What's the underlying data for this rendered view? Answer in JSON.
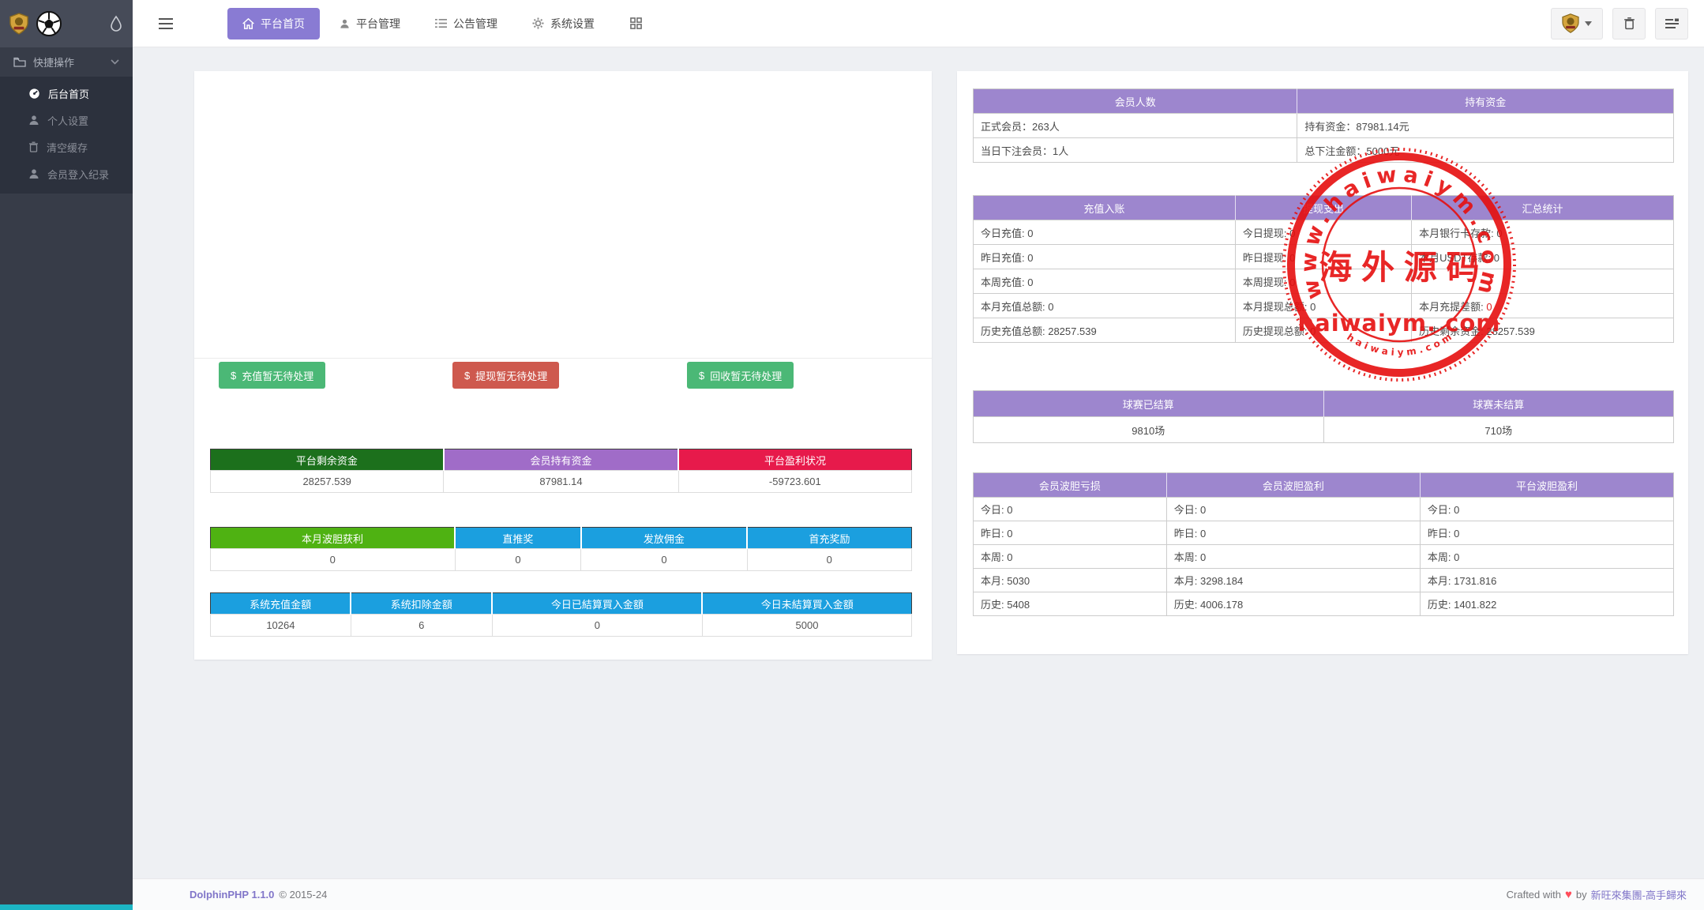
{
  "header": {
    "tabs": [
      {
        "label": "平台首页",
        "icon": "home-icon",
        "active": true
      },
      {
        "label": "平台管理",
        "icon": "user-icon",
        "active": false
      },
      {
        "label": "公告管理",
        "icon": "list-icon",
        "active": false
      },
      {
        "label": "系统设置",
        "icon": "gear-icon",
        "active": false
      }
    ],
    "accent_color": "#897bd3"
  },
  "sidebar": {
    "section": {
      "label": "快捷操作",
      "icon": "folder-open-icon"
    },
    "items": [
      {
        "label": "后台首页",
        "icon": "dashboard-icon",
        "active": true
      },
      {
        "label": "个人设置",
        "icon": "user-icon",
        "active": false
      },
      {
        "label": "清空缓存",
        "icon": "trash-icon",
        "active": false
      },
      {
        "label": "会员登入纪录",
        "icon": "user-icon",
        "active": false
      }
    ]
  },
  "left_panel": {
    "buttons": [
      {
        "label": "充值暂无待处理",
        "icon": "dollar-icon",
        "color": "#4bb876"
      },
      {
        "label": "提现暂无待处理",
        "icon": "dollar-icon",
        "color": "#ce594e"
      },
      {
        "label": "回收暂无待处理",
        "icon": "dollar-icon",
        "color": "#4bb876"
      }
    ],
    "funds_table": {
      "headers": [
        {
          "label": "平台剩余资金",
          "color": "#1c701c"
        },
        {
          "label": "会员持有资金",
          "color": "#a06cc8"
        },
        {
          "label": "平台盈利状况",
          "color": "#e71a4b"
        }
      ],
      "values": [
        "28257.539",
        "87981.14",
        "-59723.601"
      ]
    },
    "reward_table": {
      "headers": [
        {
          "label": "本月波胆获利",
          "color": "#4fb212"
        },
        {
          "label": "直推奖",
          "color": "#1b9fdf"
        },
        {
          "label": "发放佣金",
          "color": "#1b9fdf"
        },
        {
          "label": "首充奖励",
          "color": "#1b9fdf"
        }
      ],
      "values": [
        "0",
        "0",
        "0",
        "0"
      ]
    },
    "system_table": {
      "headers": [
        {
          "label": "系统充值金額",
          "color": "#1b9fdf"
        },
        {
          "label": "系统扣除金額",
          "color": "#1b9fdf"
        },
        {
          "label": "今日已結算買入金額",
          "color": "#1b9fdf"
        },
        {
          "label": "今日未結算買入金額",
          "color": "#1b9fdf"
        }
      ],
      "values": [
        "10264",
        "6",
        "0",
        "5000"
      ]
    }
  },
  "right_panel": {
    "header_color": "#9d86ce",
    "member_table": {
      "headers": [
        "会员人数",
        "持有资金"
      ],
      "rows": [
        [
          {
            "text": "正式会员：263人"
          },
          {
            "text": "持有资金：87981.14元"
          }
        ],
        [
          {
            "text": "当日下注会员：1人",
            "red": true
          },
          {
            "text": "总下注金额：5000元"
          }
        ]
      ]
    },
    "finance_table": {
      "headers": [
        "充值入账",
        "提现支出",
        "汇总统计"
      ],
      "rows": [
        [
          {
            "text": "今日充值: 0"
          },
          {
            "text": "今日提现: 0"
          },
          {
            "text": "本月银行卡存款: 0"
          }
        ],
        [
          {
            "text": "昨日充值: 0"
          },
          {
            "text": "昨日提现: 0"
          },
          {
            "text": "本月USDT存款: 0"
          }
        ],
        [
          {
            "text": "本周充值: 0"
          },
          {
            "text": "本周提现: 0"
          },
          {
            "text": ""
          }
        ],
        [
          {
            "text": "本月充值总额: 0"
          },
          {
            "text": "本月提现总额: 0"
          },
          {
            "label": "本月充提差额: ",
            "value": "0",
            "value_red": true
          }
        ],
        [
          {
            "text": "历史充值总额: 28257.539"
          },
          {
            "text": "历史提现总额: 0"
          },
          {
            "text": "历史剩余资金: 28257.539"
          }
        ]
      ]
    },
    "match_table": {
      "headers": [
        "球赛已结算",
        "球赛未结算"
      ],
      "rows": [
        [
          {
            "text": "9810场"
          },
          {
            "text": "710场"
          }
        ]
      ]
    },
    "profit_table": {
      "headers": [
        "会员波胆亏损",
        "会员波胆盈利",
        "平台波胆盈利"
      ],
      "rows": [
        [
          {
            "text": "今日: 0"
          },
          {
            "text": "今日: 0"
          },
          {
            "text": "今日: 0"
          }
        ],
        [
          {
            "text": "昨日: 0"
          },
          {
            "text": "昨日: 0"
          },
          {
            "text": "昨日: 0"
          }
        ],
        [
          {
            "text": "本周: 0"
          },
          {
            "text": "本周: 0"
          },
          {
            "text": "本周: 0"
          }
        ],
        [
          {
            "text": "本月: 5030"
          },
          {
            "text": "本月: 3298.184"
          },
          {
            "text": "本月: 1731.816"
          }
        ],
        [
          {
            "text": "历史: 5408"
          },
          {
            "text": "历史: 4006.178"
          },
          {
            "text": "历史: 1401.822"
          }
        ]
      ]
    }
  },
  "watermark": {
    "arc_text": "www.haiwaiym.com",
    "center_text": "海 外 源 码",
    "main_text": "haiwaiym. com",
    "bottom_arc_text": "h a i w a i y m . c o m",
    "color": "#e60f0f"
  },
  "footer": {
    "left_link": "DolphinPHP 1.1.0",
    "left_text": "© 2015-24",
    "right_prefix": "Crafted with",
    "heart": "♥",
    "right_mid": "by",
    "right_link": "新旺來集團-高手歸來"
  }
}
